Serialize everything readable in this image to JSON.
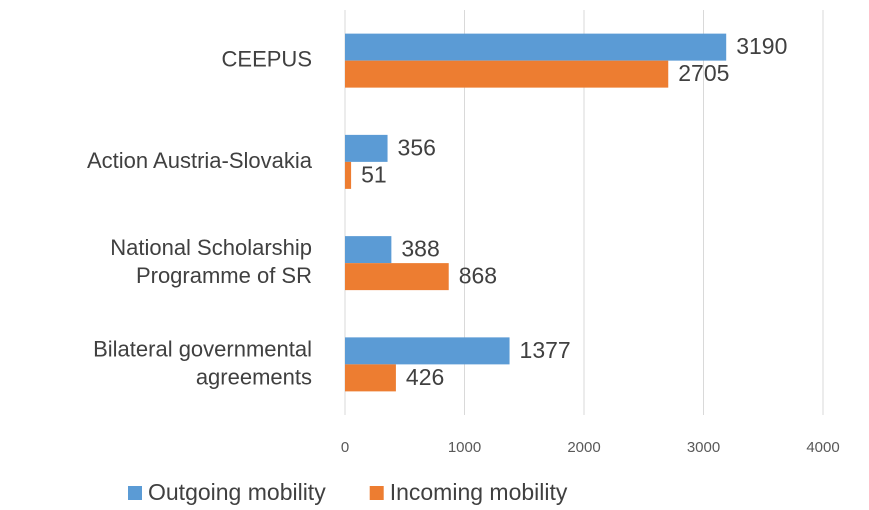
{
  "chart_data": {
    "type": "hbar",
    "categories": [
      "CEEPUS",
      "Action Austria-Slovakia",
      "National Scholarship Programme of SR",
      "Bilateral governmental agreements"
    ],
    "series": [
      {
        "name": "Outgoing mobility",
        "color": "#5b9bd5",
        "values": [
          3190,
          356,
          388,
          1377
        ]
      },
      {
        "name": "Incoming mobility",
        "color": "#ed7d31",
        "values": [
          2705,
          51,
          868,
          426
        ]
      }
    ],
    "xlim": [
      0,
      4000
    ],
    "xticks": [
      0,
      1000,
      2000,
      3000,
      4000
    ],
    "grid": true,
    "legend": "bottom"
  }
}
